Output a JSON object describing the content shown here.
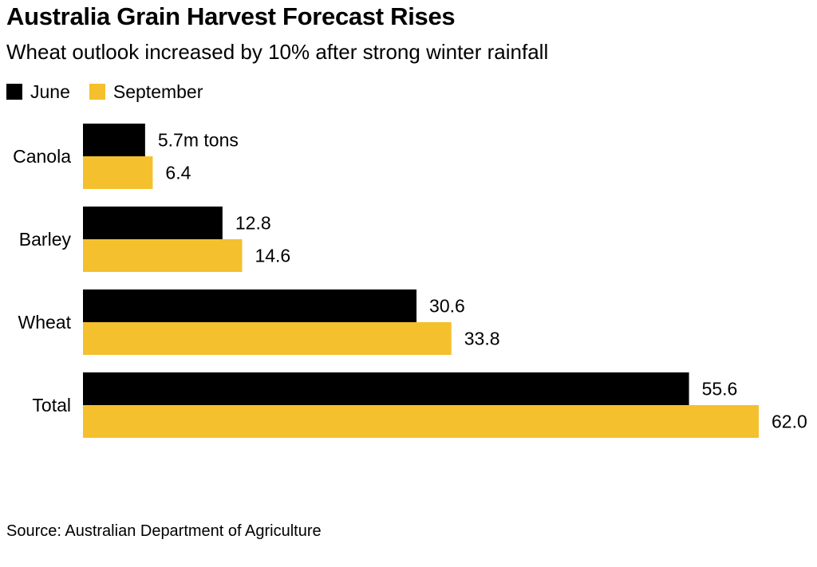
{
  "title": "Australia Grain Harvest Forecast Rises",
  "subtitle": "Wheat outlook increased by 10% after strong winter rainfall",
  "source": "Source: Australian Department of Agriculture",
  "chart_data": {
    "type": "bar",
    "orientation": "horizontal",
    "categories": [
      "Canola",
      "Barley",
      "Wheat",
      "Total"
    ],
    "series": [
      {
        "name": "June",
        "color": "#000000",
        "values": [
          5.7,
          12.8,
          30.6,
          55.6
        ],
        "labels": [
          "5.7m tons",
          "12.8",
          "30.6",
          "55.6"
        ]
      },
      {
        "name": "September",
        "color": "#f5c02e",
        "values": [
          6.4,
          14.6,
          33.8,
          62.0
        ],
        "labels": [
          "6.4",
          "14.6",
          "33.8",
          "62.0"
        ]
      }
    ],
    "xlim": [
      0,
      62.0
    ],
    "grid": false,
    "legend_position": "top-left"
  }
}
